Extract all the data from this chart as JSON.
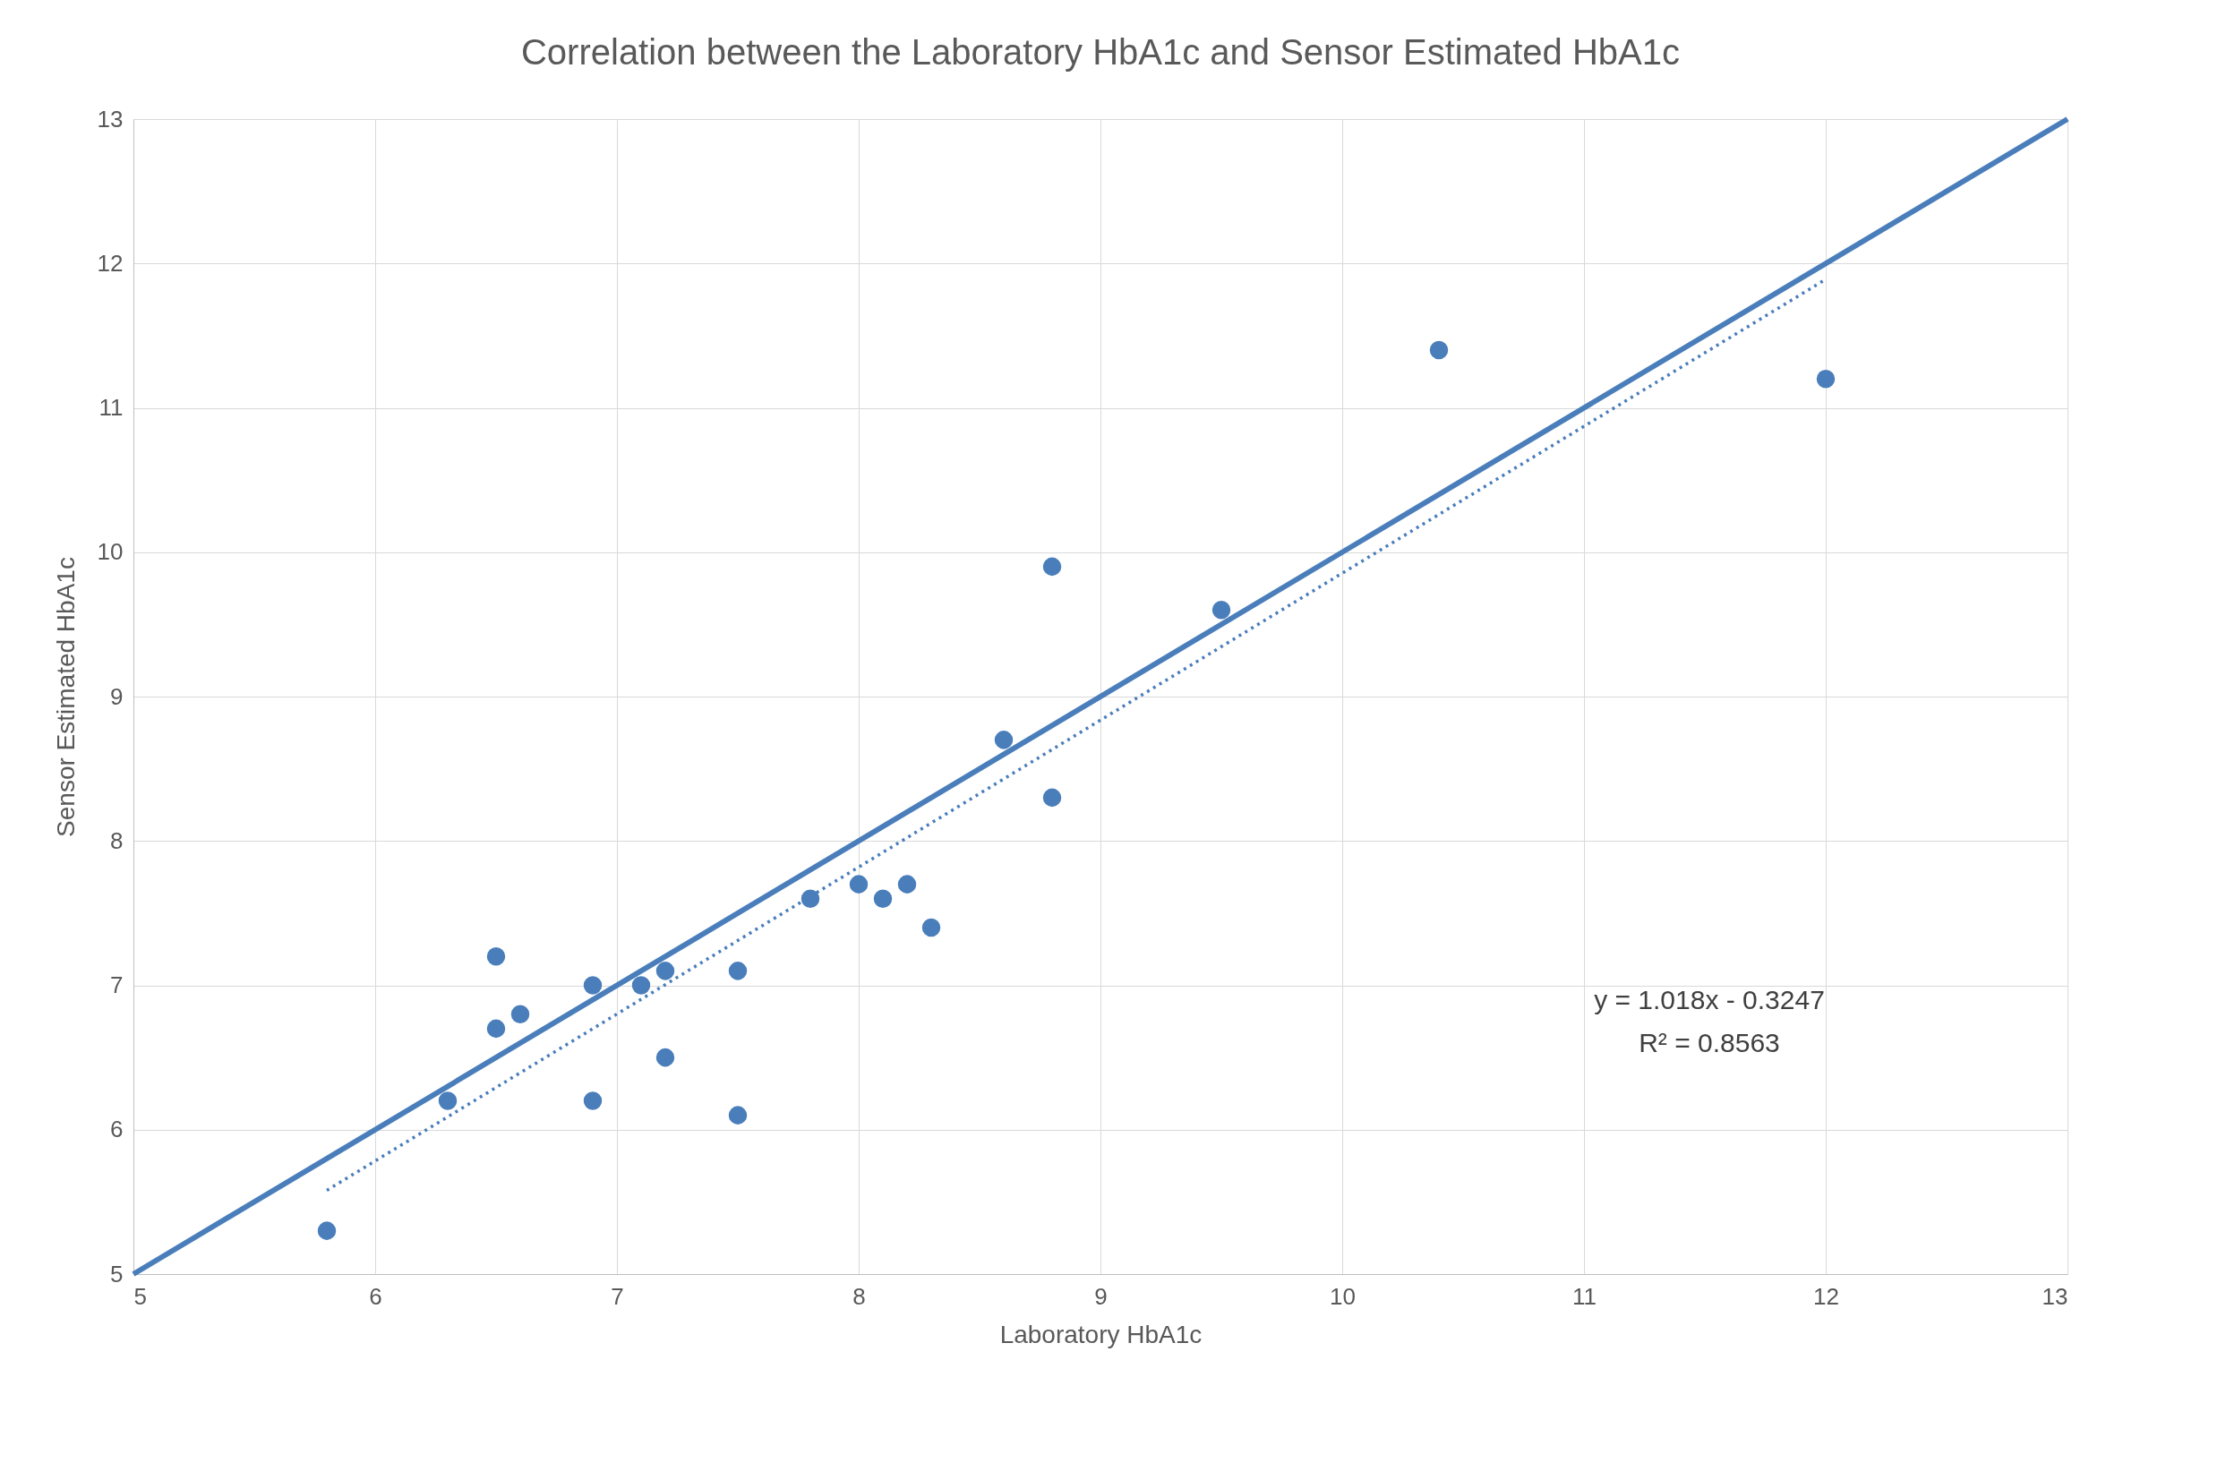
{
  "chart_data": {
    "type": "scatter",
    "title": "Correlation between the Laboratory HbA1c and Sensor Estimated HbA1c",
    "xlabel": "Laboratory HbA1c",
    "ylabel": "Sensor Estimated HbA1c",
    "xlim": [
      5,
      13
    ],
    "ylim": [
      5,
      13
    ],
    "xticks": [
      5,
      6,
      7,
      8,
      9,
      10,
      11,
      12,
      13
    ],
    "yticks": [
      5,
      6,
      7,
      8,
      9,
      10,
      11,
      12,
      13
    ],
    "grid": true,
    "series": [
      {
        "color": "#4a7ebb",
        "marker": "circle",
        "x": [
          5.8,
          6.3,
          6.5,
          6.5,
          6.6,
          6.9,
          6.9,
          7.1,
          7.2,
          7.2,
          7.5,
          7.5,
          7.8,
          8.0,
          8.1,
          8.2,
          8.3,
          8.6,
          8.8,
          8.8,
          9.5,
          10.4,
          12.0
        ],
        "values": [
          5.3,
          6.2,
          7.2,
          6.7,
          6.8,
          7.0,
          6.2,
          7.0,
          7.1,
          6.5,
          7.1,
          6.1,
          7.6,
          7.7,
          7.6,
          7.7,
          7.4,
          8.7,
          9.9,
          8.3,
          9.6,
          11.4,
          11.2
        ]
      },
      {
        "type": "line",
        "color": "#4a7ebb",
        "line_style": "solid",
        "x": [
          5,
          13
        ],
        "values": [
          5,
          13
        ]
      },
      {
        "type": "line",
        "color": "#4a7ebb",
        "line_style": "dotted",
        "x": [
          5.8,
          12
        ],
        "values": [
          5.58,
          11.89
        ]
      }
    ],
    "annotations": [
      "y = 1.018x - 0.3247",
      "R² = 0.8563"
    ]
  }
}
